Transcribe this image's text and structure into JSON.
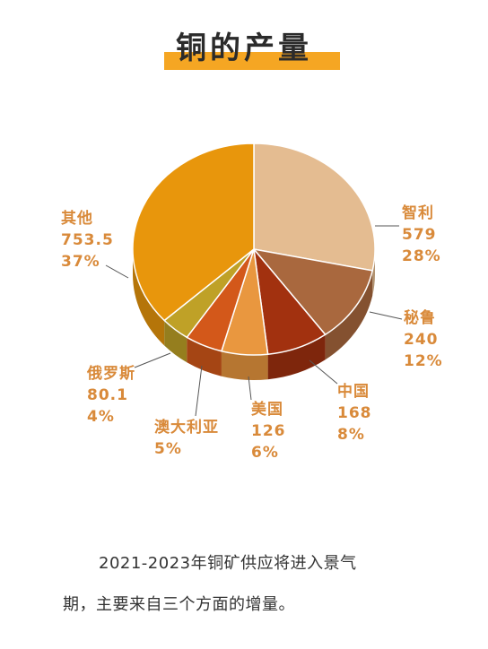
{
  "title": "铜的产量",
  "chart_data": {
    "type": "pie",
    "title": "铜的产量",
    "slices": [
      {
        "label": "智利",
        "value": 579,
        "value_text": "579",
        "percent": "28%",
        "color": "#e4bc91"
      },
      {
        "label": "秘鲁",
        "value": 240,
        "value_text": "240",
        "percent": "12%",
        "color": "#a9683e"
      },
      {
        "label": "中国",
        "value": 168,
        "value_text": "168",
        "percent": "8%",
        "color": "#a2310f"
      },
      {
        "label": "美国",
        "value": 126,
        "value_text": "126",
        "percent": "6%",
        "color": "#e9973f"
      },
      {
        "label": "澳大利亚",
        "value": 103,
        "value_text": "",
        "percent": "5%",
        "color": "#d3581a"
      },
      {
        "label": "俄罗斯",
        "value": 80.1,
        "value_text": "80.1",
        "percent": "4%",
        "color": "#bfa127"
      },
      {
        "label": "其他",
        "value": 753.5,
        "value_text": "753.5",
        "percent": "37%",
        "color": "#e8960c"
      }
    ]
  },
  "paragraph": {
    "line1": "2021-2023年铜矿供应将进入景气",
    "line2": "期，主要来自三个方面的增量。"
  }
}
